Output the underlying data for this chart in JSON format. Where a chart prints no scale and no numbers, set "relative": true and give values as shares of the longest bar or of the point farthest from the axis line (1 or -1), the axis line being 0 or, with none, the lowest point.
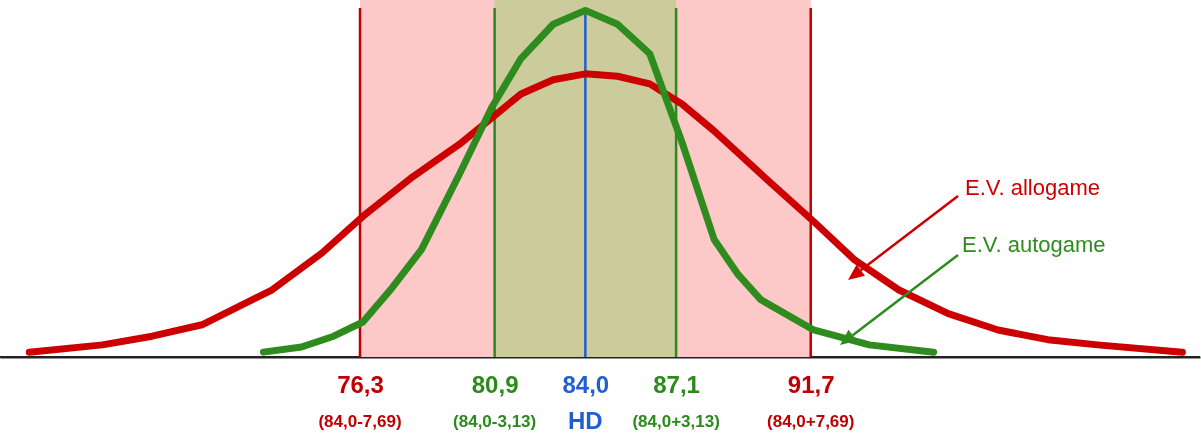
{
  "chart_data": {
    "type": "line",
    "relative": true,
    "xlim": [
      64,
      105
    ],
    "legend": false,
    "marker": "none",
    "tick_labels": "x",
    "xticks": [
      {
        "value": 76.3,
        "label": "76,3"
      },
      {
        "value": 80.9,
        "label": "80,9"
      },
      {
        "value": 84.0,
        "label": "84,0"
      },
      {
        "value": 87.1,
        "label": "87,1"
      },
      {
        "value": 91.7,
        "label": "91,7"
      }
    ],
    "series": [
      {
        "name": "E.V. allogame",
        "color": "#cc0000",
        "x": [
          65.0,
          67.5,
          69.2,
          70.9,
          73.3,
          75.0,
          76.4,
          78.1,
          79.7,
          81.8,
          82.9,
          84.0,
          85.1,
          86.2,
          87.3,
          88.4,
          90.1,
          91.8,
          93.2,
          94.7,
          96.4,
          98.1,
          99.8,
          101.5,
          104.4
        ],
        "values": [
          0.014,
          0.035,
          0.06,
          0.093,
          0.194,
          0.3,
          0.406,
          0.52,
          0.614,
          0.759,
          0.8,
          0.817,
          0.81,
          0.788,
          0.73,
          0.652,
          0.52,
          0.391,
          0.28,
          0.194,
          0.125,
          0.078,
          0.05,
          0.035,
          0.014
        ]
      },
      {
        "name": "E.V. autogame",
        "color": "#2e8b1e",
        "x": [
          73.0,
          74.3,
          75.4,
          76.4,
          77.4,
          78.4,
          79.7,
          80.8,
          81.8,
          82.9,
          84.0,
          85.1,
          86.2,
          87.3,
          88.4,
          89.2,
          90.0,
          91.8,
          93.7,
          95.9
        ],
        "values": [
          0.014,
          0.029,
          0.06,
          0.101,
          0.2,
          0.31,
          0.528,
          0.72,
          0.861,
          0.96,
          1,
          0.96,
          0.875,
          0.62,
          0.339,
          0.24,
          0.165,
          0.078,
          0.035,
          0.014
        ]
      }
    ],
    "bands": [
      {
        "axis": "x",
        "from": 76.3,
        "to": 91.7,
        "color": "#fcc8c8"
      },
      {
        "axis": "x",
        "from": 80.9,
        "to": 87.1,
        "color": "#cbcb9c"
      }
    ],
    "ref_lines": [
      {
        "axis": "x",
        "value": 76.3,
        "color": "#c00000"
      },
      {
        "axis": "x",
        "value": 80.9,
        "color": "#2a8a1a"
      },
      {
        "axis": "x",
        "value": 84.0,
        "color": "#1f5fd0"
      },
      {
        "axis": "x",
        "value": 87.1,
        "color": "#2a8a1a"
      },
      {
        "axis": "x",
        "value": 91.7,
        "color": "#c00000"
      }
    ],
    "annotations": [
      "(84,0-7,69)",
      "(84,0-3,13)",
      "HD",
      "(84,0+3,13)",
      "(84,0+7,69)"
    ]
  }
}
